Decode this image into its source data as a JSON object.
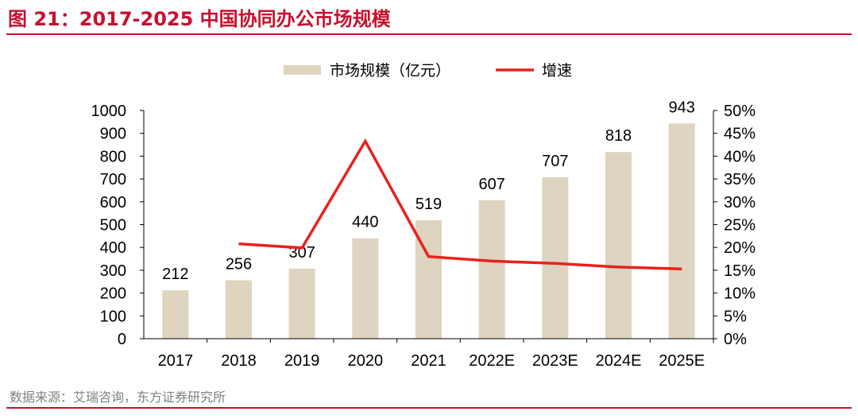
{
  "header": {
    "title": "图 21：2017-2025 中国协同办公市场规模",
    "source": "数据来源：艾瑞咨询，东方证券研究所"
  },
  "colors": {
    "accent": "#c8102e",
    "bar": "#ded4bf",
    "line": "#e8221b",
    "axis": "#000000",
    "text": "#000000"
  },
  "chart_data": {
    "type": "bar",
    "title": "2017-2025 中国协同办公市场规模",
    "categories": [
      "2017",
      "2018",
      "2019",
      "2020",
      "2021",
      "2022E",
      "2023E",
      "2024E",
      "2025E"
    ],
    "series": [
      {
        "name": "市场规模（亿元）",
        "type": "bar",
        "axis": "left",
        "values": [
          212,
          256,
          307,
          440,
          519,
          607,
          707,
          818,
          943
        ],
        "labels": [
          "212",
          "256",
          "307",
          "440",
          "519",
          "607",
          "707",
          "818",
          "943"
        ]
      },
      {
        "name": "增速",
        "type": "line",
        "axis": "right",
        "values": [
          null,
          20.8,
          19.9,
          43.3,
          18.0,
          17.0,
          16.5,
          15.7,
          15.3
        ]
      }
    ],
    "y_left": {
      "min": 0,
      "max": 1000,
      "step": 100,
      "ticks": [
        "0",
        "100",
        "200",
        "300",
        "400",
        "500",
        "600",
        "700",
        "800",
        "900",
        "1000"
      ]
    },
    "y_right": {
      "min": 0,
      "max": 50,
      "step": 5,
      "ticks": [
        "0%",
        "5%",
        "10%",
        "15%",
        "20%",
        "25%",
        "30%",
        "35%",
        "40%",
        "45%",
        "50%"
      ]
    },
    "legend": [
      {
        "label": "市场规模（亿元）",
        "kind": "bar"
      },
      {
        "label": "增速",
        "kind": "line"
      }
    ],
    "legend_position": "top-center",
    "grid": false
  }
}
